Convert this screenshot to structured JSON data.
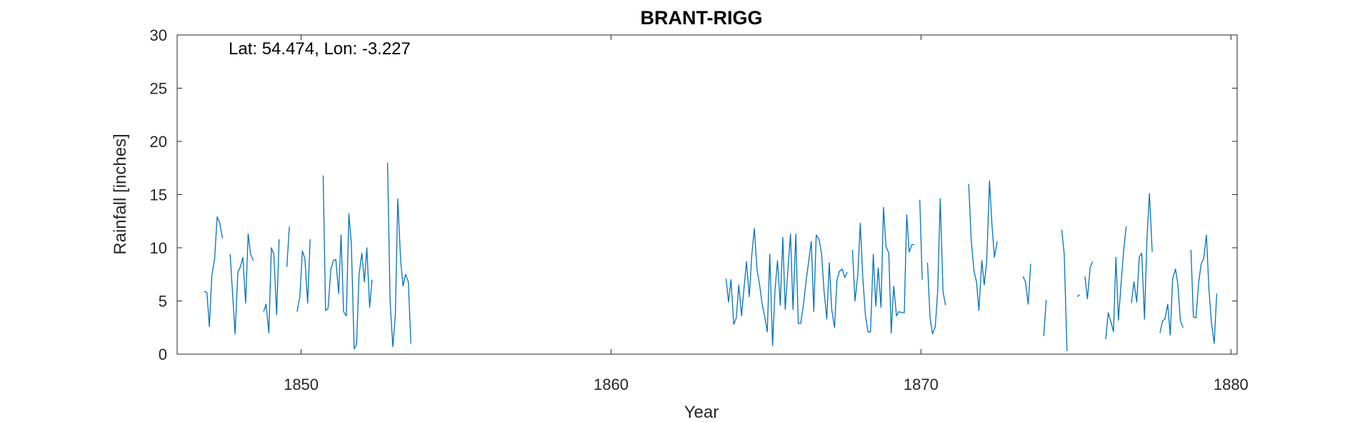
{
  "chart_data": {
    "type": "line",
    "title": "BRANT-RIGG",
    "annotation": "Lat: 54.474, Lon: -3.227",
    "xlabel": "Year",
    "ylabel": "Rainfall [inches]",
    "xlim": [
      1846,
      1880.2
    ],
    "ylim": [
      0,
      30
    ],
    "xticks": [
      1850,
      1860,
      1870,
      1880
    ],
    "yticks": [
      0,
      5,
      10,
      15,
      20,
      25,
      30
    ],
    "grid": false,
    "line_color": "#0072BD",
    "series": [
      {
        "segments": [
          [
            [
              1846.87,
              5.9
            ],
            [
              1846.96,
              5.8
            ],
            [
              1847.04,
              2.6
            ],
            [
              1847.12,
              7.4
            ],
            [
              1847.21,
              9.0
            ],
            [
              1847.29,
              12.9
            ],
            [
              1847.37,
              12.4
            ],
            [
              1847.46,
              10.9
            ]
          ],
          [
            [
              1847.71,
              9.4
            ],
            [
              1847.79,
              5.6
            ],
            [
              1847.87,
              1.9
            ],
            [
              1847.96,
              7.7
            ],
            [
              1848.04,
              8.2
            ],
            [
              1848.12,
              9.1
            ],
            [
              1848.21,
              4.8
            ],
            [
              1848.29,
              11.3
            ],
            [
              1848.37,
              9.4
            ],
            [
              1848.46,
              8.8
            ]
          ],
          [
            [
              1848.79,
              4.0
            ],
            [
              1848.87,
              4.7
            ],
            [
              1848.96,
              2.0
            ],
            [
              1849.04,
              10.0
            ],
            [
              1849.12,
              9.4
            ],
            [
              1849.21,
              3.7
            ],
            [
              1849.29,
              10.8
            ]
          ],
          [
            [
              1849.54,
              8.2
            ],
            [
              1849.62,
              12.0
            ]
          ],
          [
            [
              1849.87,
              4.0
            ],
            [
              1849.96,
              5.4
            ],
            [
              1850.04,
              9.7
            ],
            [
              1850.12,
              9.0
            ],
            [
              1850.21,
              4.8
            ],
            [
              1850.29,
              10.8
            ]
          ],
          [
            [
              1850.71,
              16.8
            ],
            [
              1850.79,
              4.1
            ],
            [
              1850.87,
              4.3
            ],
            [
              1850.96,
              8.0
            ],
            [
              1851.04,
              8.8
            ],
            [
              1851.12,
              8.9
            ],
            [
              1851.21,
              5.7
            ],
            [
              1851.29,
              11.2
            ],
            [
              1851.37,
              4.0
            ],
            [
              1851.46,
              3.6
            ],
            [
              1851.54,
              13.2
            ],
            [
              1851.62,
              10.4
            ],
            [
              1851.71,
              0.5
            ],
            [
              1851.79,
              0.9
            ],
            [
              1851.87,
              7.5
            ],
            [
              1851.96,
              9.5
            ],
            [
              1852.04,
              6.8
            ],
            [
              1852.12,
              10.0
            ],
            [
              1852.21,
              4.4
            ],
            [
              1852.29,
              7.0
            ]
          ],
          [
            [
              1852.79,
              18.0
            ],
            [
              1852.87,
              5.0
            ],
            [
              1852.96,
              0.7
            ],
            [
              1853.04,
              3.7
            ],
            [
              1853.12,
              14.6
            ],
            [
              1853.21,
              8.8
            ],
            [
              1853.29,
              6.4
            ],
            [
              1853.37,
              7.5
            ],
            [
              1853.46,
              6.8
            ],
            [
              1853.54,
              1.0
            ]
          ],
          [
            [
              1863.71,
              7.1
            ],
            [
              1863.79,
              4.9
            ],
            [
              1863.87,
              7.0
            ],
            [
              1863.96,
              2.8
            ],
            [
              1864.04,
              3.4
            ],
            [
              1864.12,
              6.5
            ],
            [
              1864.21,
              3.6
            ],
            [
              1864.29,
              6.2
            ],
            [
              1864.37,
              8.7
            ],
            [
              1864.46,
              5.4
            ],
            [
              1864.54,
              9.3
            ],
            [
              1864.62,
              11.8
            ],
            [
              1864.71,
              7.9
            ],
            [
              1864.79,
              6.6
            ],
            [
              1864.87,
              4.8
            ],
            [
              1864.96,
              3.5
            ],
            [
              1865.04,
              2.1
            ],
            [
              1865.12,
              9.4
            ],
            [
              1865.21,
              0.8
            ],
            [
              1865.29,
              6.0
            ],
            [
              1865.37,
              8.8
            ],
            [
              1865.46,
              4.6
            ],
            [
              1865.54,
              11.0
            ],
            [
              1865.62,
              4.2
            ],
            [
              1865.71,
              8.1
            ],
            [
              1865.79,
              11.3
            ],
            [
              1865.87,
              4.2
            ],
            [
              1865.96,
              11.3
            ],
            [
              1866.04,
              2.9
            ],
            [
              1866.12,
              2.9
            ],
            [
              1866.21,
              4.7
            ],
            [
              1866.29,
              6.8
            ],
            [
              1866.37,
              8.6
            ],
            [
              1866.46,
              10.6
            ],
            [
              1866.54,
              4.0
            ],
            [
              1866.62,
              11.2
            ],
            [
              1866.71,
              10.8
            ],
            [
              1866.79,
              9.5
            ],
            [
              1866.87,
              6.0
            ],
            [
              1866.96,
              3.3
            ],
            [
              1867.04,
              8.6
            ],
            [
              1867.12,
              4.2
            ],
            [
              1867.21,
              2.5
            ],
            [
              1867.29,
              7.0
            ],
            [
              1867.37,
              7.8
            ],
            [
              1867.46,
              8.0
            ],
            [
              1867.54,
              7.2
            ],
            [
              1867.62,
              7.7
            ]
          ],
          [
            [
              1867.79,
              9.8
            ],
            [
              1867.87,
              5.0
            ],
            [
              1867.96,
              7.4
            ],
            [
              1868.04,
              12.3
            ],
            [
              1868.12,
              7.3
            ],
            [
              1868.21,
              3.6
            ],
            [
              1868.29,
              2.1
            ],
            [
              1868.37,
              2.1
            ],
            [
              1868.46,
              9.4
            ],
            [
              1868.54,
              4.5
            ],
            [
              1868.62,
              8.1
            ],
            [
              1868.71,
              4.4
            ],
            [
              1868.79,
              13.8
            ],
            [
              1868.87,
              10.1
            ],
            [
              1868.96,
              9.5
            ],
            [
              1869.04,
              2.0
            ],
            [
              1869.12,
              6.4
            ],
            [
              1869.21,
              3.6
            ],
            [
              1869.29,
              4.0
            ],
            [
              1869.37,
              3.9
            ],
            [
              1869.46,
              3.9
            ],
            [
              1869.54,
              13.1
            ],
            [
              1869.62,
              9.6
            ],
            [
              1869.71,
              10.3
            ],
            [
              1869.79,
              10.3
            ]
          ],
          [
            [
              1869.96,
              14.5
            ],
            [
              1870.04,
              7.0
            ]
          ],
          [
            [
              1870.21,
              8.6
            ],
            [
              1870.29,
              3.5
            ],
            [
              1870.37,
              1.9
            ],
            [
              1870.46,
              2.6
            ],
            [
              1870.54,
              6.0
            ],
            [
              1870.62,
              14.6
            ],
            [
              1870.71,
              5.9
            ],
            [
              1870.79,
              4.6
            ]
          ],
          [
            [
              1871.54,
              16.0
            ],
            [
              1871.62,
              10.7
            ],
            [
              1871.71,
              7.8
            ],
            [
              1871.79,
              6.8
            ],
            [
              1871.87,
              4.1
            ],
            [
              1871.96,
              8.8
            ],
            [
              1872.04,
              6.5
            ],
            [
              1872.12,
              8.7
            ],
            [
              1872.21,
              16.3
            ],
            [
              1872.29,
              12.1
            ],
            [
              1872.37,
              9.1
            ],
            [
              1872.46,
              10.6
            ]
          ],
          [
            [
              1873.29,
              7.3
            ],
            [
              1873.37,
              6.8
            ],
            [
              1873.46,
              4.7
            ],
            [
              1873.54,
              8.5
            ]
          ],
          [
            [
              1873.96,
              1.7
            ],
            [
              1874.04,
              5.1
            ]
          ],
          [
            [
              1874.54,
              11.7
            ],
            [
              1874.62,
              9.4
            ],
            [
              1874.71,
              0.3
            ]
          ],
          [
            [
              1875.04,
              5.4
            ],
            [
              1875.12,
              5.6
            ]
          ],
          [
            [
              1875.29,
              7.3
            ],
            [
              1875.37,
              5.2
            ],
            [
              1875.46,
              8.2
            ],
            [
              1875.54,
              8.7
            ]
          ],
          [
            [
              1875.96,
              1.4
            ],
            [
              1876.04,
              3.9
            ],
            [
              1876.12,
              3.1
            ],
            [
              1876.21,
              2.1
            ],
            [
              1876.29,
              9.1
            ],
            [
              1876.37,
              3.2
            ],
            [
              1876.46,
              6.8
            ],
            [
              1876.54,
              9.8
            ],
            [
              1876.62,
              12.0
            ]
          ],
          [
            [
              1876.79,
              4.8
            ],
            [
              1876.87,
              6.8
            ],
            [
              1876.96,
              4.9
            ],
            [
              1877.04,
              9.1
            ],
            [
              1877.12,
              9.5
            ],
            [
              1877.21,
              3.3
            ],
            [
              1877.29,
              10.8
            ],
            [
              1877.37,
              15.1
            ],
            [
              1877.46,
              9.6
            ]
          ],
          [
            [
              1877.71,
              2.0
            ],
            [
              1877.79,
              3.1
            ],
            [
              1877.87,
              3.3
            ],
            [
              1877.96,
              4.7
            ],
            [
              1878.04,
              1.8
            ],
            [
              1878.12,
              7.1
            ],
            [
              1878.21,
              8.0
            ],
            [
              1878.29,
              6.5
            ],
            [
              1878.37,
              3.1
            ],
            [
              1878.46,
              2.5
            ]
          ],
          [
            [
              1878.71,
              9.8
            ],
            [
              1878.79,
              3.5
            ],
            [
              1878.87,
              3.4
            ],
            [
              1878.96,
              6.8
            ],
            [
              1879.04,
              8.5
            ],
            [
              1879.12,
              9.0
            ],
            [
              1879.21,
              11.2
            ],
            [
              1879.29,
              6.1
            ],
            [
              1879.37,
              3.0
            ],
            [
              1879.46,
              1.0
            ],
            [
              1879.54,
              5.7
            ]
          ]
        ]
      }
    ]
  }
}
